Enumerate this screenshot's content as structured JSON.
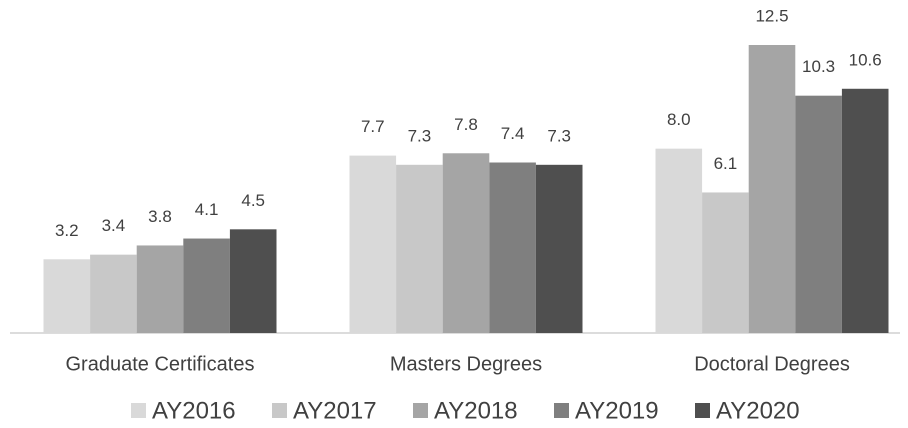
{
  "chart_data": {
    "type": "bar",
    "categories": [
      "Graduate Certificates",
      "Masters Degrees",
      "Doctoral Degrees"
    ],
    "series": [
      {
        "name": "AY2016",
        "color": "#d9d9d9",
        "values": [
          3.2,
          7.7,
          8.0
        ],
        "value_labels": [
          "3.2",
          "7.7",
          "8.0"
        ]
      },
      {
        "name": "AY2017",
        "color": "#c8c8c8",
        "values": [
          3.4,
          7.3,
          6.1
        ],
        "value_labels": [
          "3.4",
          "7.3",
          "6.1"
        ]
      },
      {
        "name": "AY2018",
        "color": "#a5a5a5",
        "values": [
          3.8,
          7.8,
          12.5
        ],
        "value_labels": [
          "3.8",
          "7.8",
          "12.5"
        ]
      },
      {
        "name": "AY2019",
        "color": "#7f7f7f",
        "values": [
          4.1,
          7.4,
          10.3
        ],
        "value_labels": [
          "4.1",
          "7.4",
          "10.3"
        ]
      },
      {
        "name": "AY2020",
        "color": "#4f4f4f",
        "values": [
          4.5,
          7.3,
          10.6
        ],
        "value_labels": [
          "4.5",
          "7.3",
          "10.6"
        ]
      }
    ],
    "legend": "bottom"
  }
}
